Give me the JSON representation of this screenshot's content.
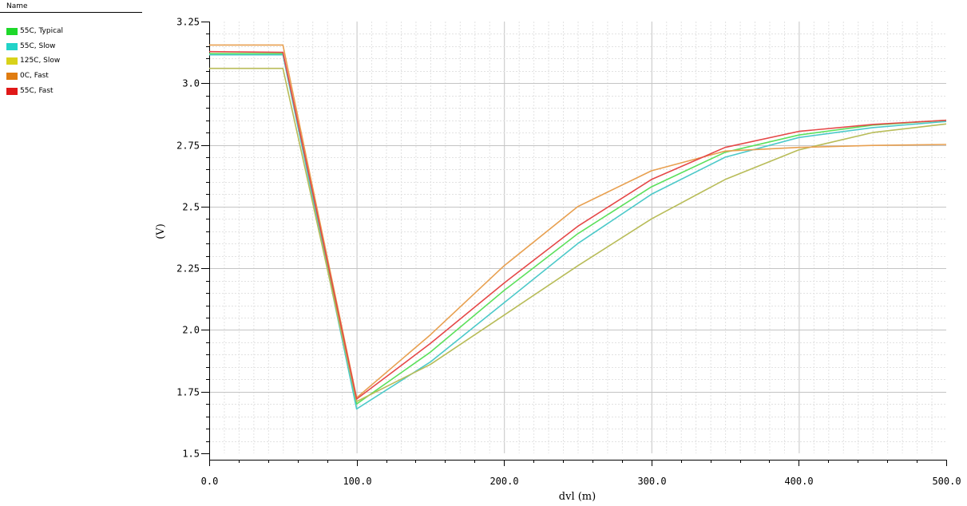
{
  "legend": {
    "header": "Name",
    "items": [
      {
        "label": "55C, Typical",
        "color": "#1ed82a"
      },
      {
        "label": "55C, Slow",
        "color": "#22d3c8"
      },
      {
        "label": "125C, Slow",
        "color": "#d8d21a"
      },
      {
        "label": "0C, Fast",
        "color": "#e07c10"
      },
      {
        "label": "55C, Fast",
        "color": "#e01818"
      }
    ]
  },
  "chart_data": {
    "type": "line",
    "xlabel": "dvl (m)",
    "ylabel": "(V)",
    "xlim": [
      0,
      500
    ],
    "ylim": [
      1.5,
      3.25
    ],
    "xticks": [
      "0.0",
      "100.0",
      "200.0",
      "300.0",
      "400.0",
      "500.0"
    ],
    "xtick_values": [
      0,
      100,
      200,
      300,
      400,
      500
    ],
    "yticks": [
      "1.5",
      "1.75",
      "2.0",
      "2.25",
      "2.5",
      "2.75",
      "3.0",
      "3.25"
    ],
    "ytick_values": [
      1.5,
      1.75,
      2.0,
      2.25,
      2.5,
      2.75,
      3.0,
      3.25
    ],
    "grid": true,
    "legend_position": "top-left",
    "x": [
      0,
      50,
      100,
      150,
      200,
      250,
      300,
      350,
      400,
      450,
      500
    ],
    "series": [
      {
        "name": "55C, Typical",
        "color": "#5ce05c",
        "values": [
          3.12,
          3.12,
          1.7,
          1.91,
          2.16,
          2.39,
          2.58,
          2.72,
          2.79,
          2.83,
          2.85
        ]
      },
      {
        "name": "55C, Slow",
        "color": "#4cc9c9",
        "values": [
          3.115,
          3.115,
          1.68,
          1.87,
          2.11,
          2.35,
          2.55,
          2.7,
          2.78,
          2.82,
          2.845
        ]
      },
      {
        "name": "125C, Slow",
        "color": "#b8bc58",
        "values": [
          3.06,
          3.06,
          1.71,
          1.86,
          2.06,
          2.26,
          2.45,
          2.61,
          2.73,
          2.8,
          2.835
        ]
      },
      {
        "name": "0C, Fast",
        "color": "#e8a050",
        "values": [
          3.155,
          3.155,
          1.725,
          1.98,
          2.26,
          2.5,
          2.645,
          2.725,
          2.74,
          2.748,
          2.752
        ]
      },
      {
        "name": "55C, Fast",
        "color": "#e54848",
        "values": [
          3.128,
          3.125,
          1.72,
          1.945,
          2.19,
          2.42,
          2.61,
          2.74,
          2.805,
          2.833,
          2.85
        ]
      }
    ]
  }
}
